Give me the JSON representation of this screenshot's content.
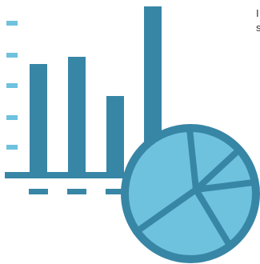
{
  "colors": {
    "dark_teal": "#3886a6",
    "light_blue": "#6ec2de",
    "white": "#ffffff"
  },
  "illustration": {
    "icon": "bar-chart-and-pie-chart-icon"
  },
  "cropped_text": {
    "line_1": "I",
    "line_2": "s"
  }
}
